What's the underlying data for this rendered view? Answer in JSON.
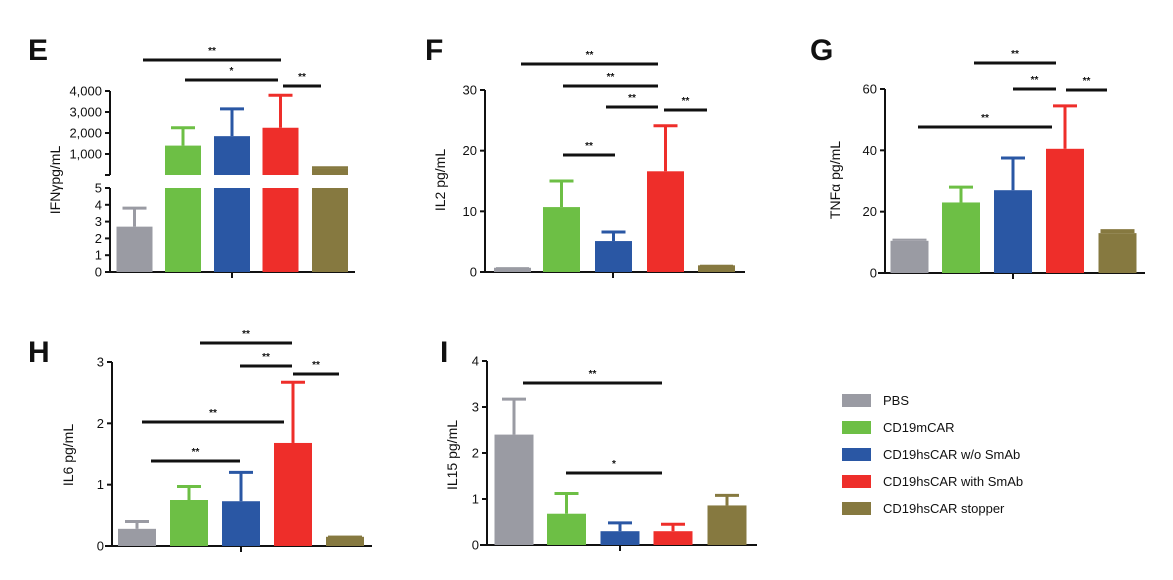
{
  "chart_data": [
    {
      "panel": "E",
      "type": "bar",
      "ylabel": "IFNγpg/mL",
      "broken_axis": true,
      "lower_ticks": [
        "0",
        "1",
        "2",
        "3",
        "4",
        "5"
      ],
      "upper_ticks": [
        "1,000",
        "2,000",
        "3,000",
        "4,000"
      ],
      "ylim_lower": [
        0,
        5
      ],
      "ylim_upper": [
        0,
        4000
      ],
      "values": [
        2.7,
        1400,
        1850,
        2250,
        330
      ],
      "errors_upper": [
        3.8,
        2250,
        3150,
        3800,
        370
      ],
      "significance": [
        {
          "from": 0,
          "to": 3,
          "label": "**"
        },
        {
          "from": 1,
          "to": 3,
          "label": "*"
        },
        {
          "from": 3,
          "to": 4,
          "label": "**"
        }
      ]
    },
    {
      "panel": "F",
      "type": "bar",
      "ylabel": "IL2 pg/mL",
      "ylim": [
        0,
        30
      ],
      "ticks": [
        "0",
        "10",
        "20",
        "30"
      ],
      "values": [
        0.7,
        10.7,
        5.1,
        16.6,
        1.1
      ],
      "errors_upper": [
        0.8,
        15,
        6.6,
        24.1,
        1.2
      ],
      "significance": [
        {
          "from": 0,
          "to": 3,
          "label": "**"
        },
        {
          "from": 1,
          "to": 3,
          "label": "**"
        },
        {
          "from": 2,
          "to": 3,
          "label": "**"
        },
        {
          "from": 3,
          "to": 4,
          "label": "**"
        },
        {
          "from": 1,
          "to": 2,
          "label": "**"
        }
      ]
    },
    {
      "panel": "G",
      "type": "bar",
      "ylabel": "TNFα pg/mL",
      "ylim": [
        0,
        60
      ],
      "ticks": [
        "0",
        "20",
        "40",
        "60"
      ],
      "values": [
        10.5,
        23,
        27,
        40.5,
        13
      ],
      "errors_upper": [
        11.2,
        28,
        37.5,
        54.5,
        14.3
      ],
      "significance": [
        {
          "from": 1,
          "to": 3,
          "label": "**"
        },
        {
          "from": 2,
          "to": 3,
          "label": "**"
        },
        {
          "from": 3,
          "to": 4,
          "label": "**"
        },
        {
          "from": 0,
          "to": 3,
          "label": "**"
        }
      ]
    },
    {
      "panel": "H",
      "type": "bar",
      "ylabel": "IL6 pg/mL",
      "ylim": [
        0,
        3
      ],
      "ticks": [
        "0",
        "1",
        "2",
        "3"
      ],
      "values": [
        0.28,
        0.75,
        0.73,
        1.68,
        0.15
      ],
      "errors_upper": [
        0.4,
        0.97,
        1.2,
        2.67,
        0.17
      ],
      "significance": [
        {
          "from": 1,
          "to": 3,
          "label": "**"
        },
        {
          "from": 2,
          "to": 3,
          "label": "**"
        },
        {
          "from": 3,
          "to": 4,
          "label": "**"
        },
        {
          "from": 0,
          "to": 3,
          "label": "**"
        },
        {
          "from": 0,
          "to": 2,
          "label": "**"
        }
      ]
    },
    {
      "panel": "I",
      "type": "bar",
      "ylabel": "IL15 pg/mL",
      "ylim": [
        0,
        4
      ],
      "ticks": [
        "0",
        "1",
        "2",
        "3",
        "4"
      ],
      "values": [
        2.4,
        0.68,
        0.3,
        0.3,
        0.86
      ],
      "errors_upper": [
        3.17,
        1.12,
        0.48,
        0.45,
        1.08
      ],
      "significance": [
        {
          "from": 0,
          "to": 3,
          "label": "**"
        },
        {
          "from": 1,
          "to": 3,
          "label": "*"
        }
      ]
    }
  ],
  "legend": [
    {
      "label": "PBS",
      "color": "#9a9ba3"
    },
    {
      "label": "CD19mCAR",
      "color": "#6dbf45"
    },
    {
      "label": "CD19hsCAR w/o SmAb",
      "color": "#2a57a4"
    },
    {
      "label": "CD19hsCAR with SmAb",
      "color": "#ee2e2a"
    },
    {
      "label": "CD19hsCAR stopper",
      "color": "#867940"
    }
  ],
  "legend_placement": "bottom-right"
}
